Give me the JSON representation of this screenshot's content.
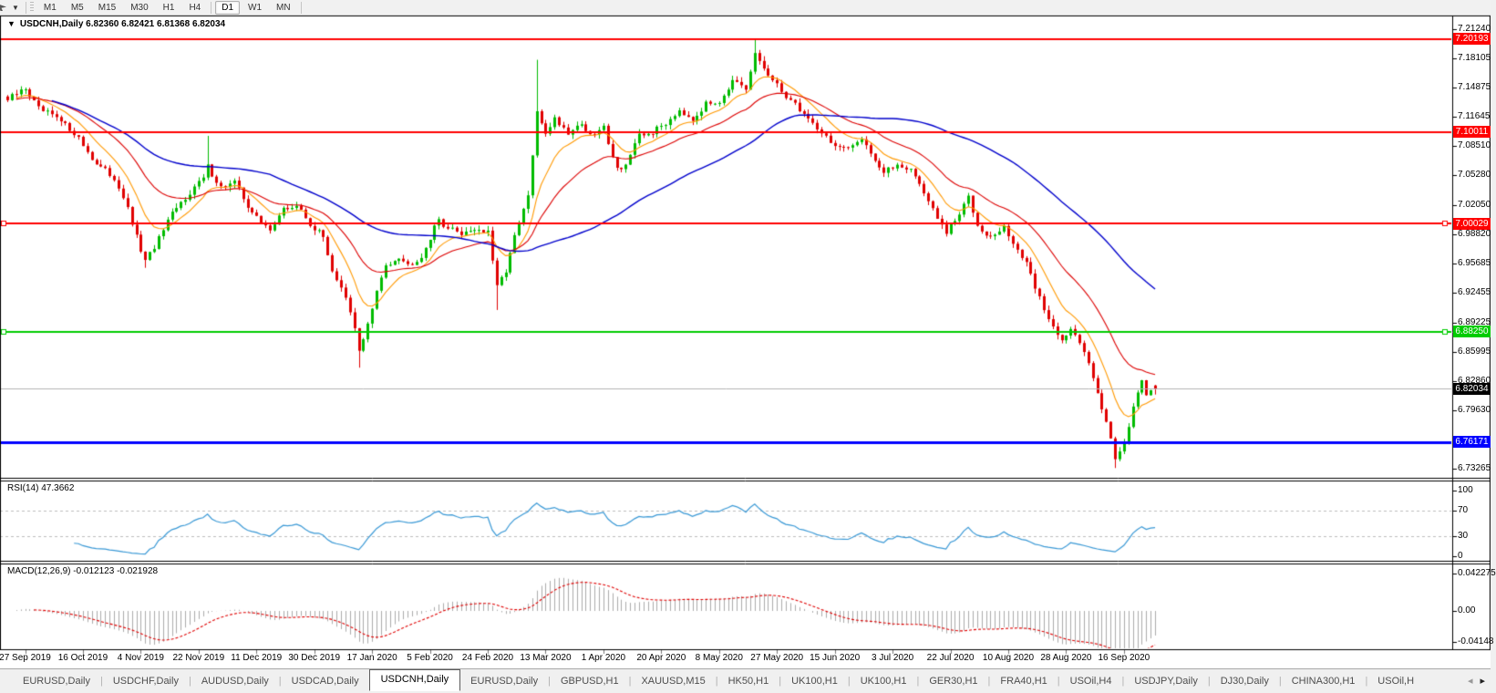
{
  "toolbar": {
    "dropdown_icon": "▼",
    "groups": [
      [
        "M1",
        "M5",
        "M15",
        "M30",
        "H1",
        "H4"
      ],
      [
        "D1",
        "W1",
        "MN"
      ]
    ],
    "active_period": "D1"
  },
  "title": {
    "dropdown_icon": "▼",
    "symbol_period": "USDCNH,Daily",
    "ohlc": "6.82360 6.82421 6.81368 6.82034"
  },
  "price_axis": {
    "ticks": [
      "7.21240",
      "7.18105",
      "7.14875",
      "7.11645",
      "7.08510",
      "7.05280",
      "7.02050",
      "6.98820",
      "6.95685",
      "6.92455",
      "6.89225",
      "6.85995",
      "6.82860",
      "6.79630",
      "6.73265"
    ]
  },
  "levels": [
    {
      "label": "7.20193",
      "price": 7.20193,
      "color": "#FF0000",
      "line_width": 2,
      "handles": false
    },
    {
      "label": "7.10011",
      "price": 7.10011,
      "color": "#FF0000",
      "line_width": 2,
      "handles": false
    },
    {
      "label": "7.00029",
      "price": 7.00029,
      "color": "#FF0000",
      "line_width": 2,
      "handles": true
    },
    {
      "label": "6.88250",
      "price": 6.8825,
      "color": "#00CC00",
      "line_width": 2,
      "handles": true
    },
    {
      "label": "6.82034",
      "price": 6.82034,
      "color": "#000000",
      "line_color": "#B4B4B4",
      "line_width": 1,
      "handles": false,
      "current_price": true
    },
    {
      "label": "6.76171",
      "price": 6.76171,
      "color": "#0000FF",
      "line_width": 3,
      "handles": false
    }
  ],
  "rsi_pane": {
    "label": "RSI(14) 47.3662",
    "scale": [
      {
        "v": 100,
        "text": "100",
        "dashed": false
      },
      {
        "v": 70,
        "text": "70",
        "dashed": true
      },
      {
        "v": 30,
        "text": "30",
        "dashed": true
      },
      {
        "v": 0,
        "text": "0",
        "dashed": false
      }
    ],
    "line_color": "#3A99D6"
  },
  "macd_pane": {
    "label": "MACD(12,26,9) -0.012123 -0.021928",
    "scale": [
      {
        "v": 0.042275,
        "text": "0.042275"
      },
      {
        "v": 0,
        "text": "0.00"
      },
      {
        "v": -0.04148,
        "text": "-0.04148"
      }
    ],
    "histogram_color": "#ABABAB",
    "signal_color": "#E00000"
  },
  "date_axis": {
    "labels": [
      "27 Sep 2019",
      "16 Oct 2019",
      "4 Nov 2019",
      "22 Nov 2019",
      "11 Dec 2019",
      "30 Dec 2019",
      "17 Jan 2020",
      "5 Feb 2020",
      "24 Feb 2020",
      "13 Mar 2020",
      "1 Apr 2020",
      "20 Apr 2020",
      "8 May 2020",
      "27 May 2020",
      "15 Jun 2020",
      "3 Jul 2020",
      "22 Jul 2020",
      "10 Aug 2020",
      "28 Aug 2020",
      "16 Sep 2020"
    ]
  },
  "tabs": {
    "items": [
      "EURUSD,Daily",
      "USDCHF,Daily",
      "AUDUSD,Daily",
      "USDCAD,Daily",
      "USDCNH,Daily",
      "EURUSD,Daily",
      "GBPUSD,H1",
      "XAUUSD,M15",
      "HK50,H1",
      "UK100,H1",
      "UK100,H1",
      "GER30,H1",
      "FRA40,H1",
      "USOil,H4",
      "USDJPY,Daily",
      "DJ30,Daily",
      "CHINA300,H1",
      "USOil,H"
    ],
    "active_index": 4,
    "scroll_left": "◂",
    "scroll_right": "▸"
  },
  "chart_data": {
    "type": "candlestick",
    "symbol": "USDCNH",
    "timeframe": "Daily",
    "visible_price_range": [
      6.73265,
      7.2124
    ],
    "date_range": [
      "27 Sep 2019",
      "25 Sep 2020"
    ],
    "bars": 259,
    "up_color": "#00BB00",
    "down_color": "#E00000",
    "bar_anchors": [
      [
        0,
        7.135
      ],
      [
        4,
        7.148
      ],
      [
        7,
        7.125
      ],
      [
        10,
        7.118
      ],
      [
        15,
        7.1
      ],
      [
        20,
        7.065
      ],
      [
        24,
        7.05
      ],
      [
        26,
        7.03
      ],
      [
        29,
        6.985
      ],
      [
        31,
        6.958
      ],
      [
        33,
        6.975
      ],
      [
        37,
        7.01
      ],
      [
        41,
        7.035
      ],
      [
        44,
        7.05
      ],
      [
        45,
        7.062
      ],
      [
        48,
        7.04
      ],
      [
        51,
        7.045
      ],
      [
        54,
        7.02
      ],
      [
        57,
        7.0
      ],
      [
        59,
        6.995
      ],
      [
        62,
        7.015
      ],
      [
        65,
        7.02
      ],
      [
        68,
        7.0
      ],
      [
        71,
        6.985
      ],
      [
        73,
        6.95
      ],
      [
        76,
        6.918
      ],
      [
        78,
        6.885
      ],
      [
        79,
        6.862
      ],
      [
        81,
        6.89
      ],
      [
        83,
        6.925
      ],
      [
        85,
        6.955
      ],
      [
        88,
        6.965
      ],
      [
        90,
        6.955
      ],
      [
        93,
        6.965
      ],
      [
        95,
        6.985
      ],
      [
        97,
        7.005
      ],
      [
        99,
        6.995
      ],
      [
        102,
        6.99
      ],
      [
        105,
        6.995
      ],
      [
        108,
        6.99
      ],
      [
        110,
        6.93
      ],
      [
        112,
        6.95
      ],
      [
        114,
        6.985
      ],
      [
        117,
        7.03
      ],
      [
        119,
        7.12
      ],
      [
        121,
        7.1
      ],
      [
        123,
        7.115
      ],
      [
        126,
        7.1
      ],
      [
        129,
        7.11
      ],
      [
        131,
        7.095
      ],
      [
        134,
        7.105
      ],
      [
        137,
        7.06
      ],
      [
        139,
        7.065
      ],
      [
        142,
        7.095
      ],
      [
        145,
        7.1
      ],
      [
        148,
        7.11
      ],
      [
        151,
        7.125
      ],
      [
        154,
        7.115
      ],
      [
        157,
        7.13
      ],
      [
        160,
        7.135
      ],
      [
        163,
        7.155
      ],
      [
        166,
        7.145
      ],
      [
        168,
        7.185
      ],
      [
        170,
        7.17
      ],
      [
        172,
        7.155
      ],
      [
        174,
        7.145
      ],
      [
        177,
        7.13
      ],
      [
        180,
        7.115
      ],
      [
        183,
        7.1
      ],
      [
        186,
        7.085
      ],
      [
        189,
        7.08
      ],
      [
        192,
        7.095
      ],
      [
        195,
        7.07
      ],
      [
        197,
        7.055
      ],
      [
        200,
        7.065
      ],
      [
        203,
        7.06
      ],
      [
        206,
        7.035
      ],
      [
        209,
        7.005
      ],
      [
        211,
        6.99
      ],
      [
        214,
        7.01
      ],
      [
        216,
        7.03
      ],
      [
        218,
        7.0
      ],
      [
        221,
        6.985
      ],
      [
        224,
        6.995
      ],
      [
        226,
        6.98
      ],
      [
        229,
        6.955
      ],
      [
        232,
        6.92
      ],
      [
        234,
        6.895
      ],
      [
        237,
        6.875
      ],
      [
        239,
        6.885
      ],
      [
        242,
        6.86
      ],
      [
        244,
        6.835
      ],
      [
        246,
        6.8
      ],
      [
        248,
        6.765
      ],
      [
        249,
        6.745
      ],
      [
        251,
        6.762
      ],
      [
        253,
        6.8
      ],
      [
        255,
        6.826
      ],
      [
        256,
        6.815
      ],
      [
        258,
        6.82034
      ]
    ],
    "wick_overrides": [
      [
        31,
        "l",
        6.952
      ],
      [
        45,
        "h",
        7.096
      ],
      [
        79,
        "l",
        6.843
      ],
      [
        110,
        "l",
        6.906
      ],
      [
        119,
        "h",
        7.179
      ],
      [
        168,
        "h",
        7.2018
      ],
      [
        249,
        "l",
        6.7335
      ]
    ],
    "last_bar": {
      "o": 6.8236,
      "h": 6.82421,
      "l": 6.81368,
      "c": 6.82034
    },
    "moving_averages": [
      {
        "period": 10,
        "method": "ema",
        "color": "#FF9900"
      },
      {
        "period": 25,
        "method": "ema",
        "color": "#DD0000"
      },
      {
        "period": 60,
        "method": "sma",
        "color": "#0000CC"
      }
    ],
    "indicators": [
      {
        "name": "RSI",
        "period": 14,
        "current_value": 47.3662,
        "levels": [
          30,
          70
        ],
        "range": [
          0,
          100
        ]
      },
      {
        "name": "MACD",
        "params": [
          12,
          26,
          9
        ],
        "macd_value": -0.012123,
        "signal_value": -0.021928,
        "range": [
          -0.04148,
          0.042275
        ]
      }
    ]
  }
}
